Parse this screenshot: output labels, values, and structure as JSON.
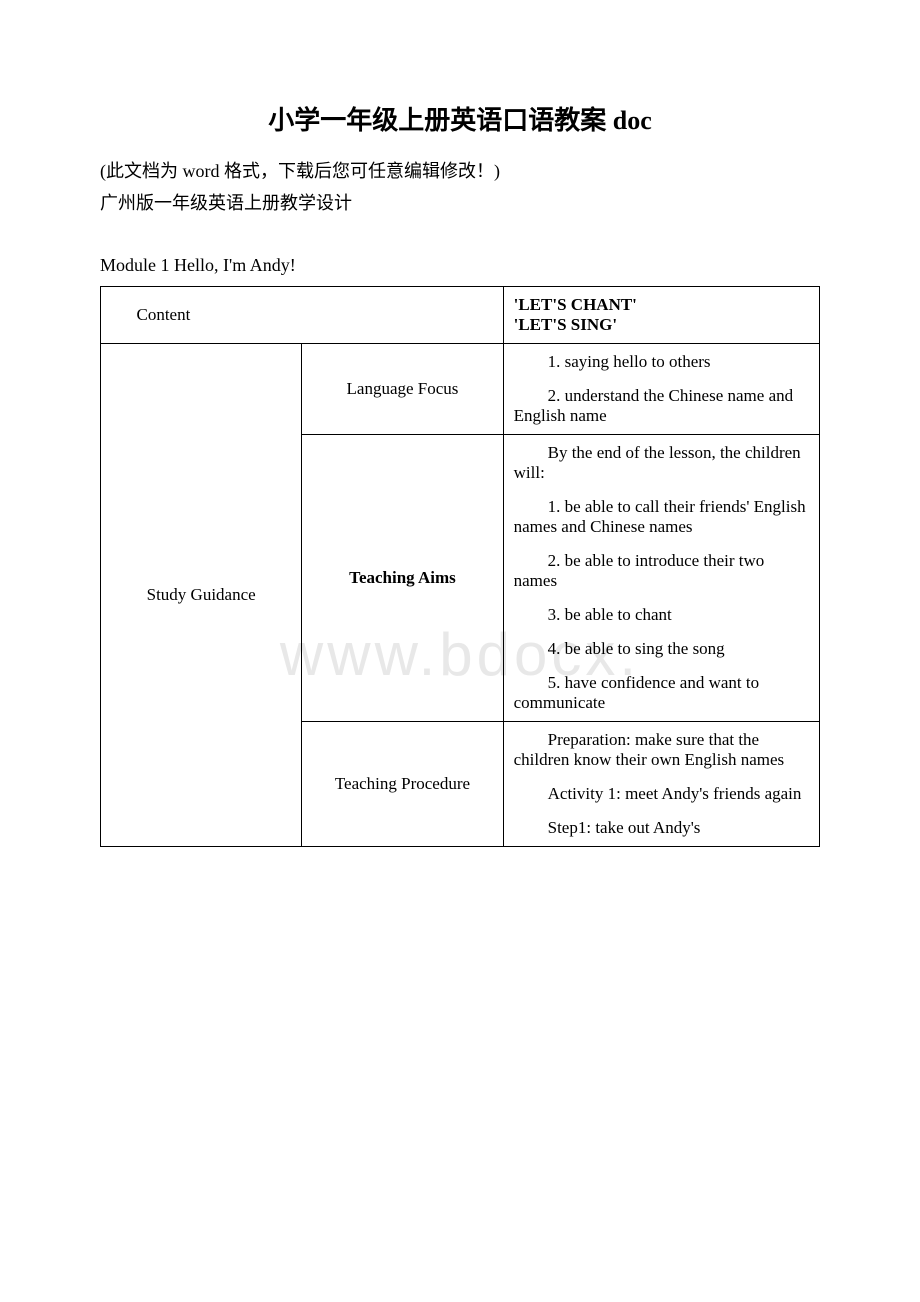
{
  "watermark": "www.bdocx.",
  "title": "小学一年级上册英语口语教案 doc",
  "intro1": "(此文档为 word 格式，下载后您可任意编辑修改！)",
  "intro2": "广州版一年级英语上册教学设计",
  "module": "Module 1 Hello, I'm Andy!",
  "table": {
    "row1": {
      "content": "Content",
      "header_line1": "'LET'S CHANT'",
      "header_line2": "'LET'S SING'"
    },
    "study_guidance": "Study Guidance",
    "language_focus": {
      "label": "Language Focus",
      "p1": "1. saying hello to others",
      "p2": "2. understand the Chinese name and English name"
    },
    "teaching_aims": {
      "label": "Teaching Aims",
      "p1": "By the end of the lesson, the children will:",
      "p2": "1. be able to call their friends' English names and Chinese names",
      "p3": "2. be able to introduce their two names",
      "p4": "3. be able to chant",
      "p5": "4. be able to sing the song",
      "p6": "5. have confidence and want to communicate"
    },
    "teaching_procedure": {
      "label": "Teaching Procedure",
      "p1": "Preparation: make sure that the children know their own English names",
      "p2": "Activity 1: meet Andy's friends again",
      "p3": "Step1: take out Andy's"
    }
  }
}
